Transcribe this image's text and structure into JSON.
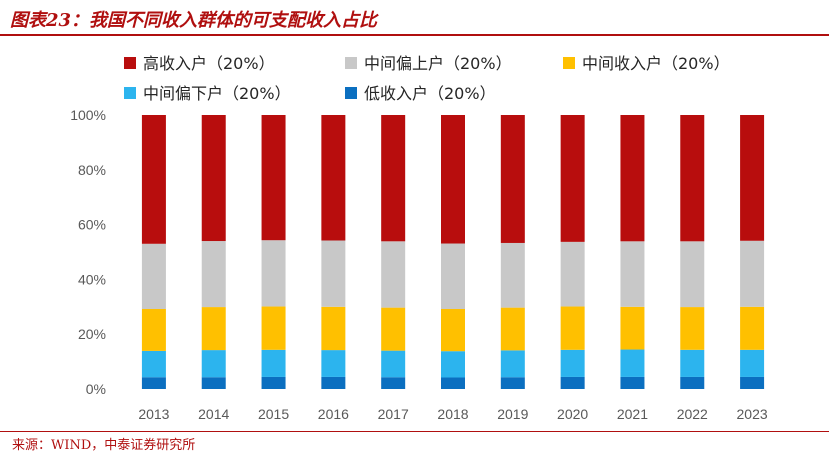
{
  "header": {
    "title": "图表23：我国不同收入群体的可支配收入占比"
  },
  "footer": {
    "source": "来源：WIND，中泰证券研究所"
  },
  "chart_data": {
    "type": "bar",
    "stacked": true,
    "normalized": true,
    "categories": [
      "2013",
      "2014",
      "2015",
      "2016",
      "2017",
      "2018",
      "2019",
      "2020",
      "2021",
      "2022",
      "2023"
    ],
    "y_ticks": [
      "0%",
      "20%",
      "40%",
      "60%",
      "80%",
      "100%"
    ],
    "ylim": [
      0,
      100
    ],
    "legend_position": "top",
    "grid": false,
    "series": [
      {
        "name": "低收入户（20%）",
        "color": "#0b6fc0",
        "values": [
          4.3,
          4.3,
          4.4,
          4.4,
          4.3,
          4.2,
          4.3,
          4.4,
          4.4,
          4.4,
          4.4
        ]
      },
      {
        "name": "中间偏下户（20%）",
        "color": "#2cb4ee",
        "values": [
          9.6,
          9.9,
          9.9,
          9.8,
          9.7,
          9.6,
          9.8,
          9.9,
          10.0,
          9.9,
          9.9
        ]
      },
      {
        "name": "中间收入户（20%）",
        "color": "#ffc000",
        "values": [
          15.3,
          15.7,
          15.8,
          15.8,
          15.7,
          15.4,
          15.6,
          15.8,
          15.6,
          15.6,
          15.7
        ]
      },
      {
        "name": "中间偏上户（20%）",
        "color": "#c8c8c8",
        "values": [
          23.8,
          24.1,
          24.2,
          24.2,
          24.2,
          23.9,
          23.6,
          23.6,
          23.9,
          24.0,
          24.1
        ]
      },
      {
        "name": "高收入户（20%）",
        "color": "#b80d0d",
        "values": [
          47.0,
          46.0,
          45.7,
          45.8,
          46.1,
          46.9,
          46.7,
          46.3,
          46.1,
          46.1,
          45.9
        ]
      }
    ],
    "legend_order": [
      4,
      3,
      2,
      1,
      0
    ]
  }
}
